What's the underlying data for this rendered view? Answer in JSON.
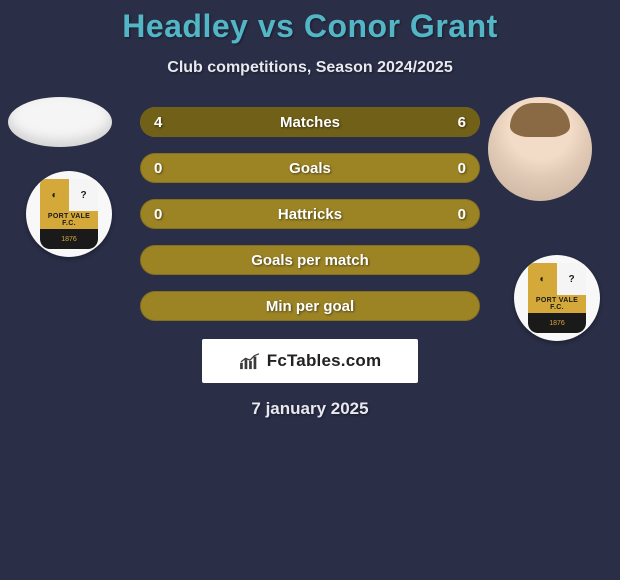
{
  "title": "Headley vs Conor Grant",
  "subtitle": "Club competitions, Season 2024/2025",
  "date": "7 january 2025",
  "colors": {
    "background": "#2a2e46",
    "title": "#53b6c7",
    "bar_base": "#9c8425",
    "bar_fill": "#716018",
    "text": "#ffffff"
  },
  "crest": {
    "band_text": "PORT VALE F.C.",
    "bottom_text": "1876"
  },
  "brand": {
    "name_prefix": "Fc",
    "name_suffix": "Tables.com"
  },
  "bars": [
    {
      "label": "Matches",
      "left": "4",
      "right": "6",
      "left_pct": 40,
      "right_pct": 60
    },
    {
      "label": "Goals",
      "left": "0",
      "right": "0",
      "left_pct": 0,
      "right_pct": 0
    },
    {
      "label": "Hattricks",
      "left": "0",
      "right": "0",
      "left_pct": 0,
      "right_pct": 0
    },
    {
      "label": "Goals per match",
      "left": "",
      "right": "",
      "left_pct": 0,
      "right_pct": 0
    },
    {
      "label": "Min per goal",
      "left": "",
      "right": "",
      "left_pct": 0,
      "right_pct": 0
    }
  ]
}
